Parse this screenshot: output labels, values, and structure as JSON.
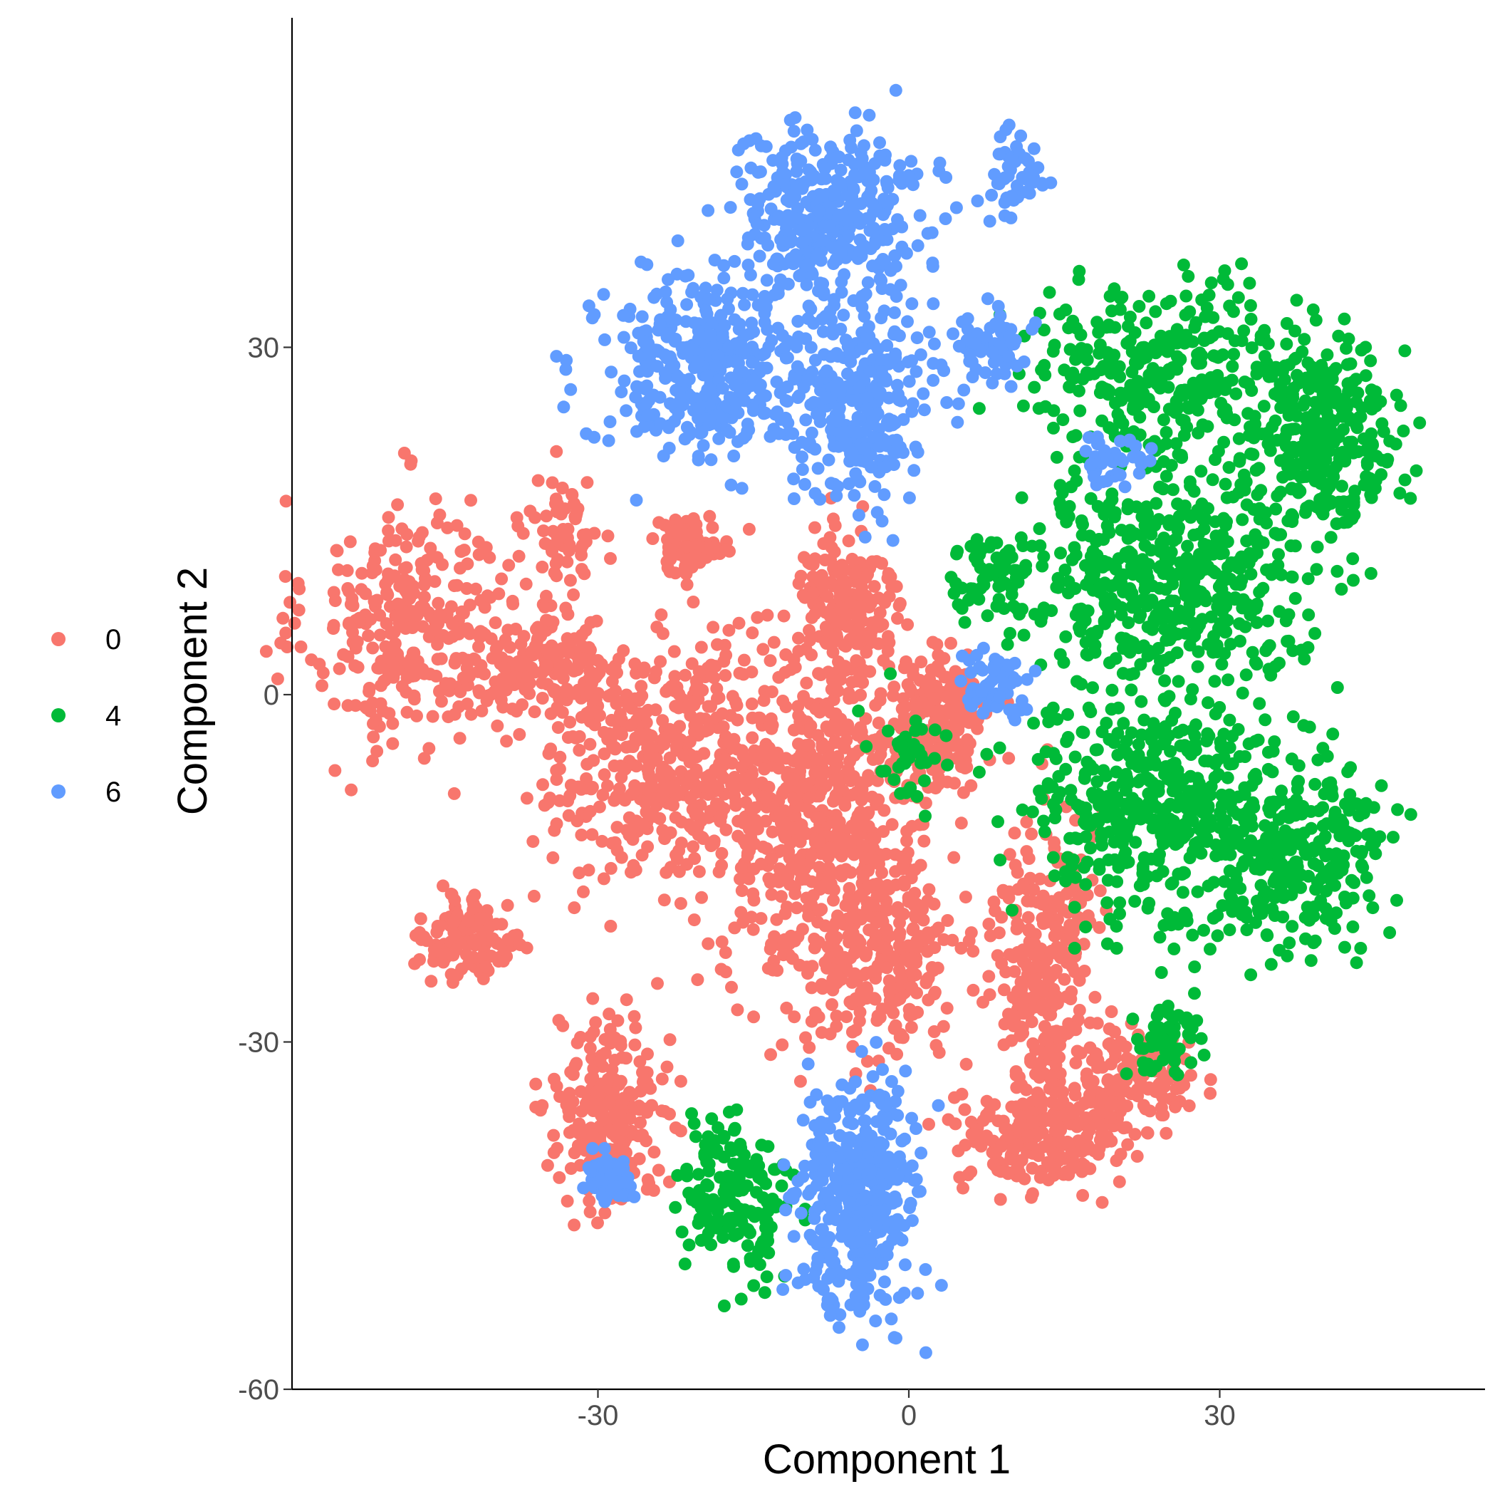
{
  "chart_data": {
    "type": "scatter",
    "title": "",
    "xlabel": "Component 1",
    "ylabel": "Component 2",
    "xlim": [
      -60,
      55
    ],
    "ylim": [
      -60,
      58
    ],
    "x_ticks": [
      -30,
      0,
      30
    ],
    "x_tick_labels": [
      "-30",
      "0",
      "30"
    ],
    "y_ticks": [
      -60,
      -30,
      0,
      30
    ],
    "y_tick_labels": [
      "-60",
      "-30",
      "0",
      "30"
    ],
    "grid": false,
    "legend_position": "left",
    "series": [
      {
        "name": "0",
        "color": "#F8766D",
        "clusters": [
          {
            "cx": -48,
            "cy": 6,
            "rx": 10,
            "ry": 11,
            "n": 320
          },
          {
            "cx": -35,
            "cy": 3,
            "rx": 8,
            "ry": 5,
            "n": 160
          },
          {
            "cx": -33,
            "cy": 14,
            "rx": 3,
            "ry": 5,
            "n": 60
          },
          {
            "cx": -21,
            "cy": 13,
            "rx": 4,
            "ry": 2.5,
            "n": 70
          },
          {
            "cx": -23,
            "cy": -6,
            "rx": 12,
            "ry": 10,
            "n": 460
          },
          {
            "cx": -8,
            "cy": -11,
            "rx": 10,
            "ry": 16,
            "n": 620
          },
          {
            "cx": -6,
            "cy": 8,
            "rx": 5,
            "ry": 7,
            "n": 160
          },
          {
            "cx": 3,
            "cy": -2,
            "rx": 5,
            "ry": 6,
            "n": 150
          },
          {
            "cx": -2,
            "cy": -23,
            "rx": 7,
            "ry": 8,
            "n": 200
          },
          {
            "cx": -42,
            "cy": -21,
            "rx": 4.5,
            "ry": 3.5,
            "n": 140
          },
          {
            "cx": -29,
            "cy": -36,
            "rx": 5,
            "ry": 8,
            "n": 240
          },
          {
            "cx": 13,
            "cy": -24,
            "rx": 5,
            "ry": 14,
            "n": 300
          },
          {
            "cx": 13,
            "cy": -38,
            "rx": 8,
            "ry": 5,
            "n": 220
          },
          {
            "cx": 22,
            "cy": -33,
            "rx": 6,
            "ry": 4,
            "n": 120
          }
        ]
      },
      {
        "name": "4",
        "color": "#00BA38",
        "clusters": [
          {
            "cx": 25,
            "cy": 28,
            "rx": 13,
            "ry": 7,
            "n": 320
          },
          {
            "cx": 40,
            "cy": 23,
            "rx": 7,
            "ry": 8,
            "n": 300
          },
          {
            "cx": 25,
            "cy": 10,
            "rx": 14,
            "ry": 9,
            "n": 520
          },
          {
            "cx": 25,
            "cy": -10,
            "rx": 13,
            "ry": 10,
            "n": 480
          },
          {
            "cx": 38,
            "cy": -14,
            "rx": 8,
            "ry": 8,
            "n": 240
          },
          {
            "cx": 8,
            "cy": 10,
            "rx": 4,
            "ry": 4,
            "n": 60
          },
          {
            "cx": -17,
            "cy": -43,
            "rx": 5,
            "ry": 7,
            "n": 160
          },
          {
            "cx": 25,
            "cy": -30,
            "rx": 4,
            "ry": 3,
            "n": 60
          },
          {
            "cx": 0,
            "cy": -5,
            "rx": 4,
            "ry": 5,
            "n": 40
          }
        ]
      },
      {
        "name": "6",
        "color": "#619CFF",
        "clusters": [
          {
            "cx": -8,
            "cy": 41,
            "rx": 9,
            "ry": 8,
            "n": 340
          },
          {
            "cx": -20,
            "cy": 28,
            "rx": 10,
            "ry": 8,
            "n": 360
          },
          {
            "cx": -5,
            "cy": 25,
            "rx": 7,
            "ry": 9,
            "n": 280
          },
          {
            "cx": 10,
            "cy": 45,
            "rx": 3,
            "ry": 3,
            "n": 50
          },
          {
            "cx": 8,
            "cy": 30,
            "rx": 4,
            "ry": 3,
            "n": 60
          },
          {
            "cx": -5,
            "cy": -43,
            "rx": 6,
            "ry": 10,
            "n": 380
          },
          {
            "cx": -29,
            "cy": -42,
            "rx": 2.5,
            "ry": 2,
            "n": 60
          },
          {
            "cx": 8,
            "cy": 1,
            "rx": 3,
            "ry": 3,
            "n": 60
          },
          {
            "cx": 20,
            "cy": 20,
            "rx": 4,
            "ry": 2,
            "n": 40
          }
        ]
      }
    ]
  }
}
